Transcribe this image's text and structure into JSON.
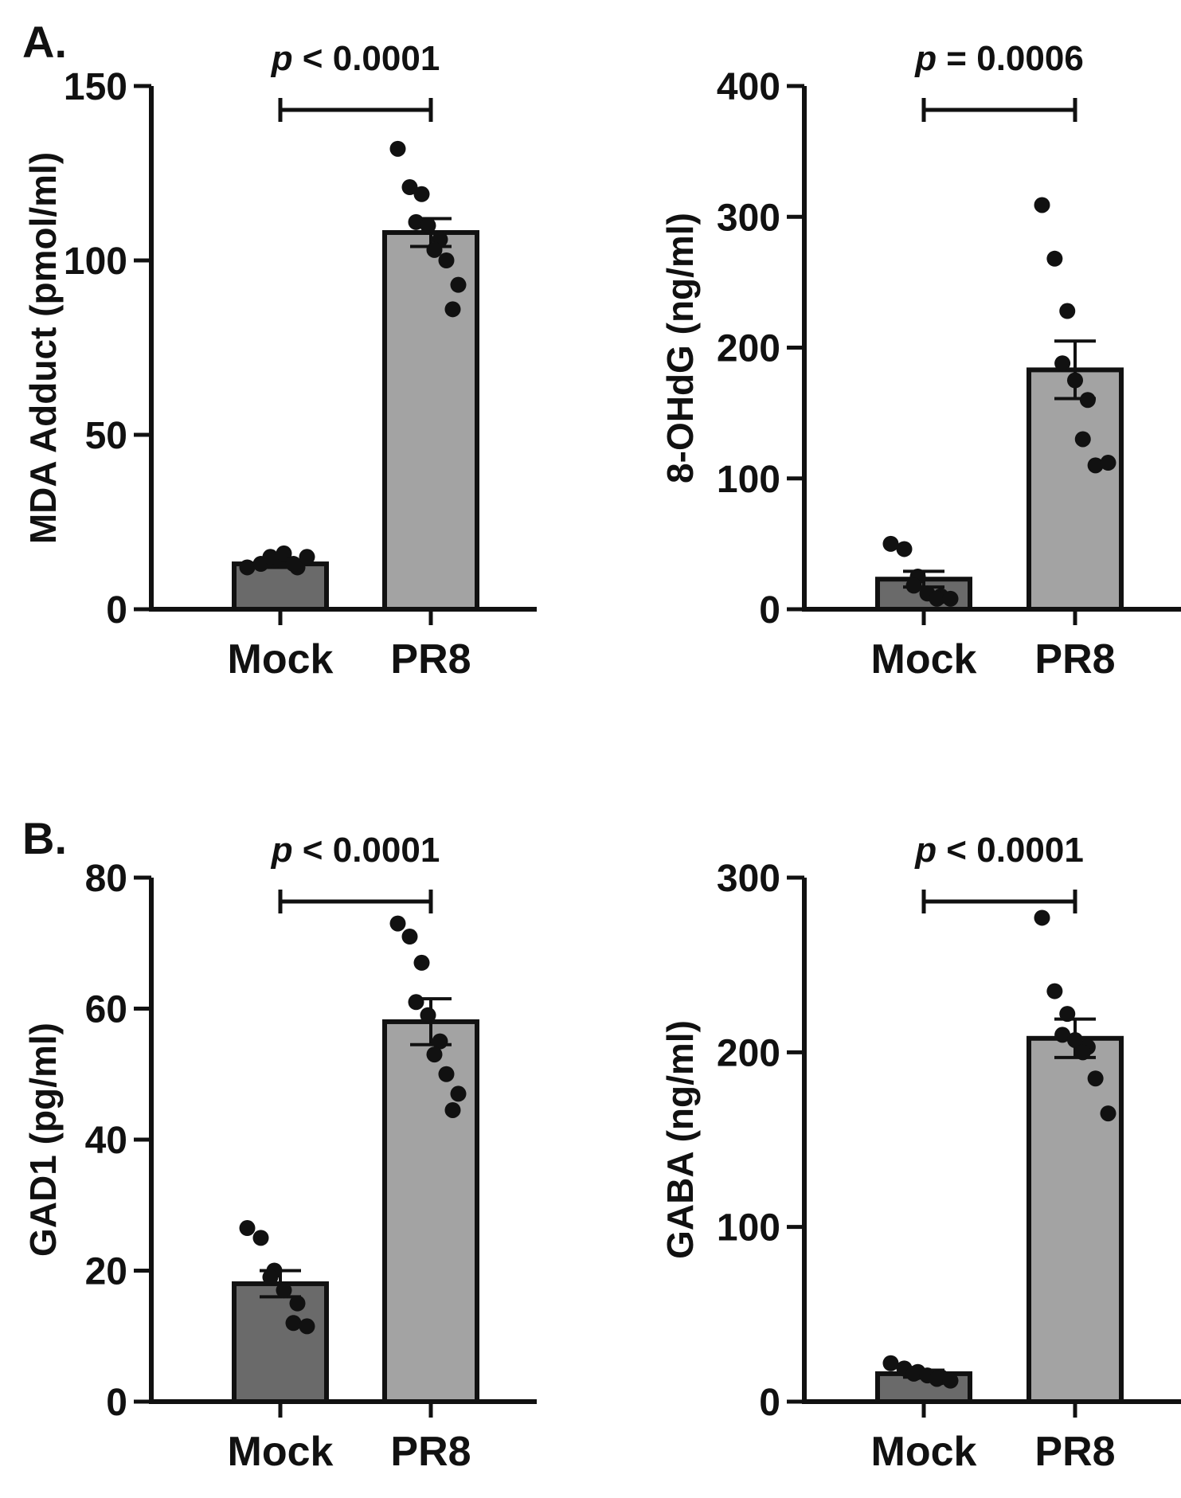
{
  "panel_labels": [
    "A.",
    "B."
  ],
  "colors": {
    "mock_bar": "#6a6a6a",
    "pr8_bar": "#a3a3a3",
    "ink": "#111111"
  },
  "chart_data": [
    {
      "type": "bar",
      "panel": "A.",
      "ylabel": "MDA Adduct (pmol/ml)",
      "ylim": [
        0,
        150
      ],
      "yticks": [
        0,
        50,
        100,
        150
      ],
      "categories": [
        "Mock",
        "PR8"
      ],
      "values": [
        13,
        108
      ],
      "sem": [
        1,
        4
      ],
      "points": [
        [
          12,
          13,
          14,
          15,
          16,
          12,
          13,
          15
        ],
        [
          132,
          121,
          119,
          111,
          110,
          106,
          103,
          100,
          93,
          86
        ]
      ],
      "p_label": "p",
      "p_text": "< 0.0001"
    },
    {
      "type": "bar",
      "ylabel": "8-OHdG (ng/ml)",
      "ylim": [
        0,
        400
      ],
      "yticks": [
        0,
        100,
        200,
        300,
        400
      ],
      "categories": [
        "Mock",
        "PR8"
      ],
      "values": [
        23,
        183
      ],
      "sem": [
        6,
        22
      ],
      "points": [
        [
          50,
          46,
          25,
          18,
          12,
          10,
          8,
          8
        ],
        [
          309,
          268,
          228,
          188,
          175,
          160,
          130,
          110,
          112
        ]
      ],
      "p_label": "p",
      "p_text": "= 0.0006"
    },
    {
      "type": "bar",
      "panel": "B.",
      "ylabel": "GAD1 (pg/ml)",
      "ylim": [
        0,
        80
      ],
      "yticks": [
        0,
        20,
        40,
        60,
        80
      ],
      "categories": [
        "Mock",
        "PR8"
      ],
      "values": [
        18,
        58
      ],
      "sem": [
        2,
        3.5
      ],
      "points": [
        [
          26.5,
          25,
          20,
          19,
          17,
          15,
          12,
          11.5
        ],
        [
          73,
          71,
          67,
          61,
          59,
          55,
          53,
          50,
          47,
          44.5
        ]
      ],
      "p_label": "p",
      "p_text": "< 0.0001"
    },
    {
      "type": "bar",
      "ylabel": "GABA (ng/ml)",
      "ylim": [
        0,
        300
      ],
      "yticks": [
        0,
        100,
        200,
        300
      ],
      "categories": [
        "Mock",
        "PR8"
      ],
      "values": [
        16,
        208
      ],
      "sem": [
        2,
        11
      ],
      "points": [
        [
          22,
          19,
          17,
          16,
          15,
          14,
          13,
          12
        ],
        [
          277,
          235,
          222,
          210,
          207,
          203,
          200,
          185,
          165
        ]
      ],
      "p_label": "p",
      "p_text": "< 0.0001"
    }
  ]
}
